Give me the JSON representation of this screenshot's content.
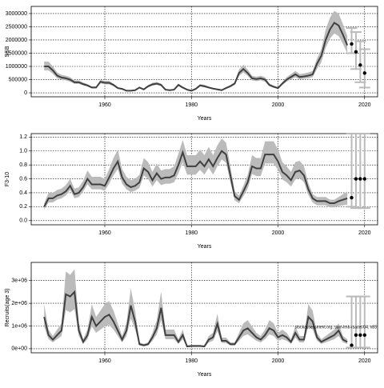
{
  "chart_data": [
    {
      "type": "line",
      "xlabel": "Years",
      "ylabel": "SSB",
      "grid": true,
      "line_color": "#404040",
      "band_color": "#bbbbbb",
      "proj_color": "#bbbbbb",
      "point_color": "#000000",
      "xlim": [
        1943,
        2023
      ],
      "xticks": [
        1960,
        1980,
        2000,
        2020
      ],
      "ylim": [
        -150000,
        3270000
      ],
      "yticks": [
        0,
        500000,
        1000000,
        1500000,
        2000000,
        2500000,
        3000000
      ],
      "x": [
        1946,
        1947,
        1948,
        1949,
        1950,
        1951,
        1952,
        1953,
        1954,
        1955,
        1956,
        1957,
        1958,
        1959,
        1960,
        1961,
        1962,
        1963,
        1964,
        1965,
        1966,
        1967,
        1968,
        1969,
        1970,
        1971,
        1972,
        1973,
        1974,
        1975,
        1976,
        1977,
        1978,
        1979,
        1980,
        1981,
        1982,
        1983,
        1984,
        1985,
        1986,
        1987,
        1988,
        1989,
        1990,
        1991,
        1992,
        1993,
        1994,
        1995,
        1996,
        1997,
        1998,
        1999,
        2000,
        2001,
        2002,
        2003,
        2004,
        2005,
        2006,
        2007,
        2008,
        2009,
        2010,
        2011,
        2012,
        2013,
        2014,
        2015,
        2016
      ],
      "values": [
        1000000,
        1000000,
        850000,
        650000,
        580000,
        550000,
        500000,
        400000,
        400000,
        330000,
        280000,
        200000,
        200000,
        420000,
        380000,
        380000,
        300000,
        180000,
        150000,
        80000,
        80000,
        100000,
        200000,
        130000,
        250000,
        320000,
        350000,
        300000,
        120000,
        100000,
        120000,
        300000,
        200000,
        120000,
        80000,
        150000,
        280000,
        250000,
        200000,
        160000,
        130000,
        100000,
        180000,
        250000,
        350000,
        750000,
        900000,
        750000,
        550000,
        520000,
        550000,
        500000,
        300000,
        230000,
        180000,
        350000,
        500000,
        600000,
        700000,
        600000,
        620000,
        650000,
        700000,
        1100000,
        1400000,
        2000000,
        2400000,
        2650000,
        2550000,
        2200000,
        1800000
      ],
      "lower": [
        850000,
        850000,
        720000,
        550000,
        490000,
        470000,
        420000,
        340000,
        340000,
        280000,
        240000,
        170000,
        170000,
        360000,
        320000,
        320000,
        250000,
        150000,
        130000,
        70000,
        70000,
        80000,
        170000,
        110000,
        210000,
        270000,
        300000,
        250000,
        100000,
        80000,
        100000,
        250000,
        170000,
        100000,
        70000,
        130000,
        240000,
        210000,
        170000,
        140000,
        110000,
        80000,
        150000,
        210000,
        300000,
        640000,
        770000,
        640000,
        470000,
        440000,
        470000,
        420000,
        250000,
        190000,
        150000,
        300000,
        420000,
        510000,
        590000,
        510000,
        530000,
        550000,
        590000,
        900000,
        1150000,
        1700000,
        2050000,
        2250000,
        2150000,
        1850000,
        1500000
      ],
      "upper": [
        1180000,
        1180000,
        1000000,
        770000,
        680000,
        650000,
        590000,
        470000,
        470000,
        390000,
        330000,
        240000,
        240000,
        490000,
        450000,
        450000,
        350000,
        210000,
        180000,
        100000,
        100000,
        120000,
        240000,
        150000,
        290000,
        380000,
        410000,
        350000,
        140000,
        120000,
        140000,
        350000,
        240000,
        140000,
        100000,
        180000,
        330000,
        300000,
        240000,
        190000,
        150000,
        120000,
        210000,
        300000,
        410000,
        880000,
        1060000,
        880000,
        650000,
        610000,
        650000,
        590000,
        350000,
        270000,
        210000,
        410000,
        590000,
        710000,
        830000,
        710000,
        730000,
        770000,
        830000,
        1300000,
        1650000,
        2380000,
        2850000,
        3100000,
        3000000,
        2600000,
        2150000
      ],
      "proj_x": [
        2017,
        2018,
        2019,
        2020
      ],
      "proj_values": [
        1850000,
        1550000,
        1050000,
        750000
      ],
      "proj_lower": [
        1500000,
        900000,
        400000,
        200000
      ],
      "proj_upper": [
        2450000,
        2300000,
        1950000,
        1650000
      ]
    },
    {
      "type": "line",
      "xlabel": "Years",
      "ylabel": "F3-10",
      "grid": true,
      "line_color": "#404040",
      "band_color": "#bbbbbb",
      "proj_color": "#bbbbbb",
      "point_color": "#000000",
      "xlim": [
        1943,
        2023
      ],
      "xticks": [
        1960,
        1980,
        2000,
        2020
      ],
      "ylim": [
        -0.06,
        1.25
      ],
      "yticks": [
        {
          "value": 0,
          "label": "0.0"
        },
        {
          "value": 0.2,
          "label": "0.2"
        },
        {
          "value": 0.4,
          "label": "0.4"
        },
        {
          "value": 0.6,
          "label": "0.6"
        },
        {
          "value": 0.8,
          "label": "0.8"
        },
        {
          "value": 1,
          "label": "1.0"
        },
        {
          "value": 1.2,
          "label": "1.2"
        }
      ],
      "x": [
        1946,
        1947,
        1948,
        1949,
        1950,
        1951,
        1952,
        1953,
        1954,
        1955,
        1956,
        1957,
        1958,
        1959,
        1960,
        1961,
        1962,
        1963,
        1964,
        1965,
        1966,
        1967,
        1968,
        1969,
        1970,
        1971,
        1972,
        1973,
        1974,
        1975,
        1976,
        1977,
        1978,
        1979,
        1980,
        1981,
        1982,
        1983,
        1984,
        1985,
        1986,
        1987,
        1988,
        1989,
        1990,
        1991,
        1992,
        1993,
        1994,
        1995,
        1996,
        1997,
        1998,
        1999,
        2000,
        2001,
        2002,
        2003,
        2004,
        2005,
        2006,
        2007,
        2008,
        2009,
        2010,
        2011,
        2012,
        2013,
        2014,
        2015,
        2016
      ],
      "values": [
        0.2,
        0.32,
        0.32,
        0.36,
        0.38,
        0.42,
        0.5,
        0.38,
        0.4,
        0.48,
        0.6,
        0.52,
        0.52,
        0.52,
        0.5,
        0.62,
        0.75,
        0.85,
        0.62,
        0.52,
        0.48,
        0.5,
        0.55,
        0.75,
        0.7,
        0.58,
        0.68,
        0.6,
        0.62,
        0.62,
        0.65,
        0.8,
        0.98,
        0.78,
        0.78,
        0.78,
        0.85,
        0.78,
        0.88,
        0.78,
        0.9,
        1.0,
        0.95,
        0.65,
        0.35,
        0.3,
        0.42,
        0.55,
        0.78,
        0.75,
        0.75,
        0.95,
        0.95,
        0.95,
        0.85,
        0.7,
        0.65,
        0.58,
        0.7,
        0.72,
        0.65,
        0.45,
        0.32,
        0.28,
        0.28,
        0.28,
        0.25,
        0.25,
        0.28,
        0.3,
        0.32
      ],
      "lower": [
        0.16,
        0.26,
        0.26,
        0.3,
        0.32,
        0.36,
        0.44,
        0.32,
        0.34,
        0.42,
        0.52,
        0.45,
        0.45,
        0.45,
        0.43,
        0.53,
        0.65,
        0.74,
        0.53,
        0.45,
        0.41,
        0.43,
        0.47,
        0.65,
        0.6,
        0.49,
        0.58,
        0.51,
        0.53,
        0.53,
        0.55,
        0.68,
        0.84,
        0.66,
        0.66,
        0.66,
        0.73,
        0.66,
        0.76,
        0.66,
        0.78,
        0.88,
        0.83,
        0.55,
        0.29,
        0.25,
        0.35,
        0.46,
        0.67,
        0.64,
        0.64,
        0.82,
        0.82,
        0.82,
        0.73,
        0.59,
        0.55,
        0.49,
        0.59,
        0.61,
        0.55,
        0.37,
        0.26,
        0.22,
        0.22,
        0.22,
        0.19,
        0.19,
        0.21,
        0.22,
        0.23
      ],
      "upper": [
        0.25,
        0.4,
        0.4,
        0.44,
        0.46,
        0.51,
        0.6,
        0.46,
        0.48,
        0.57,
        0.72,
        0.63,
        0.63,
        0.63,
        0.6,
        0.74,
        0.9,
        1.02,
        0.74,
        0.63,
        0.58,
        0.6,
        0.66,
        0.9,
        0.84,
        0.7,
        0.82,
        0.72,
        0.74,
        0.74,
        0.78,
        0.96,
        1.16,
        0.94,
        0.94,
        0.94,
        1.02,
        0.94,
        1.06,
        0.94,
        1.08,
        1.18,
        1.12,
        0.78,
        0.42,
        0.36,
        0.5,
        0.66,
        0.94,
        0.9,
        0.9,
        1.14,
        1.14,
        1.14,
        1.02,
        0.84,
        0.78,
        0.7,
        0.84,
        0.86,
        0.78,
        0.54,
        0.38,
        0.34,
        0.34,
        0.34,
        0.3,
        0.3,
        0.34,
        0.38,
        0.42
      ],
      "proj_x": [
        2017,
        2018,
        2019,
        2020
      ],
      "proj_values": [
        0.33,
        0.6,
        0.6,
        0.6
      ],
      "proj_lower": [
        0.2,
        0.18,
        0.18,
        0.18
      ],
      "proj_upper": [
        1.25,
        1.25,
        1.25,
        1.25
      ]
    },
    {
      "type": "line",
      "xlabel": "Years",
      "ylabel": "Recruits(age 3)",
      "grid": true,
      "line_color": "#404040",
      "band_color": "#bbbbbb",
      "proj_color": "#bbbbbb",
      "point_color": "#000000",
      "annotation": "stockassessment.org, sam-lmb-rsacet-04, n83",
      "xlim": [
        1943,
        2023
      ],
      "xticks": [
        1960,
        1980,
        2000,
        2020
      ],
      "ylim": [
        -180000,
        3800000
      ],
      "yticks": [
        {
          "value": 0,
          "label": "0e+00"
        },
        {
          "value": 1000000,
          "label": "1e+06"
        },
        {
          "value": 2000000,
          "label": "2e+06"
        },
        {
          "value": 3000000,
          "label": "3e+06"
        }
      ],
      "x": [
        1946,
        1947,
        1948,
        1949,
        1950,
        1951,
        1952,
        1953,
        1954,
        1955,
        1956,
        1957,
        1958,
        1959,
        1960,
        1961,
        1962,
        1963,
        1964,
        1965,
        1966,
        1967,
        1968,
        1969,
        1970,
        1971,
        1972,
        1973,
        1974,
        1975,
        1976,
        1977,
        1978,
        1979,
        1980,
        1981,
        1982,
        1983,
        1984,
        1985,
        1986,
        1987,
        1988,
        1989,
        1990,
        1991,
        1992,
        1993,
        1994,
        1995,
        1996,
        1997,
        1998,
        1999,
        2000,
        2001,
        2002,
        2003,
        2004,
        2005,
        2006,
        2007,
        2008,
        2009,
        2010,
        2011,
        2012,
        2013,
        2014,
        2015,
        2016
      ],
      "values": [
        1400000,
        600000,
        400000,
        600000,
        800000,
        2400000,
        2300000,
        2500000,
        800000,
        300000,
        600000,
        1400000,
        1000000,
        1200000,
        1400000,
        1500000,
        1200000,
        800000,
        400000,
        800000,
        1900000,
        1200000,
        200000,
        150000,
        200000,
        500000,
        900000,
        1800000,
        600000,
        600000,
        600000,
        300000,
        600000,
        100000,
        120000,
        120000,
        120000,
        100000,
        400000,
        500000,
        1100000,
        350000,
        350000,
        200000,
        200000,
        500000,
        800000,
        900000,
        700000,
        500000,
        400000,
        600000,
        900000,
        800000,
        500000,
        600000,
        500000,
        300000,
        700000,
        400000,
        400000,
        1400000,
        1200000,
        500000,
        300000,
        400000,
        500000,
        600000,
        800000,
        400000,
        300000
      ],
      "lower": [
        980000,
        420000,
        280000,
        420000,
        560000,
        1700000,
        1600000,
        1750000,
        560000,
        210000,
        420000,
        980000,
        700000,
        840000,
        980000,
        1050000,
        840000,
        560000,
        280000,
        560000,
        1330000,
        840000,
        140000,
        100000,
        140000,
        350000,
        630000,
        1260000,
        420000,
        420000,
        420000,
        210000,
        420000,
        70000,
        80000,
        80000,
        80000,
        70000,
        280000,
        350000,
        770000,
        250000,
        250000,
        140000,
        140000,
        350000,
        560000,
        630000,
        490000,
        350000,
        280000,
        420000,
        630000,
        560000,
        350000,
        420000,
        350000,
        210000,
        490000,
        280000,
        280000,
        980000,
        840000,
        350000,
        210000,
        280000,
        350000,
        420000,
        560000,
        280000,
        210000
      ],
      "upper": [
        1960000,
        840000,
        560000,
        840000,
        1120000,
        3400000,
        3250000,
        3500000,
        1120000,
        420000,
        840000,
        1960000,
        1400000,
        1680000,
        1960000,
        2100000,
        1680000,
        1120000,
        560000,
        1120000,
        2660000,
        1680000,
        280000,
        210000,
        280000,
        700000,
        1260000,
        2520000,
        840000,
        840000,
        840000,
        420000,
        840000,
        140000,
        170000,
        170000,
        170000,
        140000,
        560000,
        700000,
        1540000,
        490000,
        490000,
        280000,
        280000,
        700000,
        1120000,
        1260000,
        980000,
        700000,
        560000,
        840000,
        1260000,
        1120000,
        700000,
        840000,
        700000,
        420000,
        980000,
        560000,
        560000,
        1960000,
        1680000,
        700000,
        420000,
        560000,
        700000,
        840000,
        1120000,
        560000,
        420000
      ],
      "proj_x": [
        2017,
        2018,
        2019,
        2020
      ],
      "proj_values": [
        150000,
        600000,
        600000,
        600000
      ],
      "proj_lower": [
        50000,
        50000,
        50000,
        50000
      ],
      "proj_upper": [
        2300000,
        2300000,
        2300000,
        2300000
      ]
    }
  ]
}
